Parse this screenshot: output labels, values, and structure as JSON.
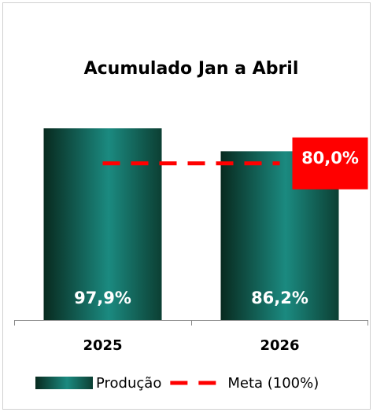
{
  "chart_data": {
    "type": "bar",
    "title": "Acumulado Jan a Abril",
    "categories": [
      "2025",
      "2026"
    ],
    "series": [
      {
        "name": "Produção",
        "type": "bar",
        "color": "#1b8a80",
        "values": [
          97.9,
          86.2
        ],
        "value_labels": [
          "97,9%",
          "86,2%"
        ]
      },
      {
        "name": "Meta (100%)",
        "type": "line",
        "color": "#ff0000",
        "values": [
          80,
          80
        ],
        "value_labels": [
          null,
          "80,0%"
        ]
      }
    ],
    "ylim": [
      0,
      100
    ],
    "legend": "bottom"
  }
}
